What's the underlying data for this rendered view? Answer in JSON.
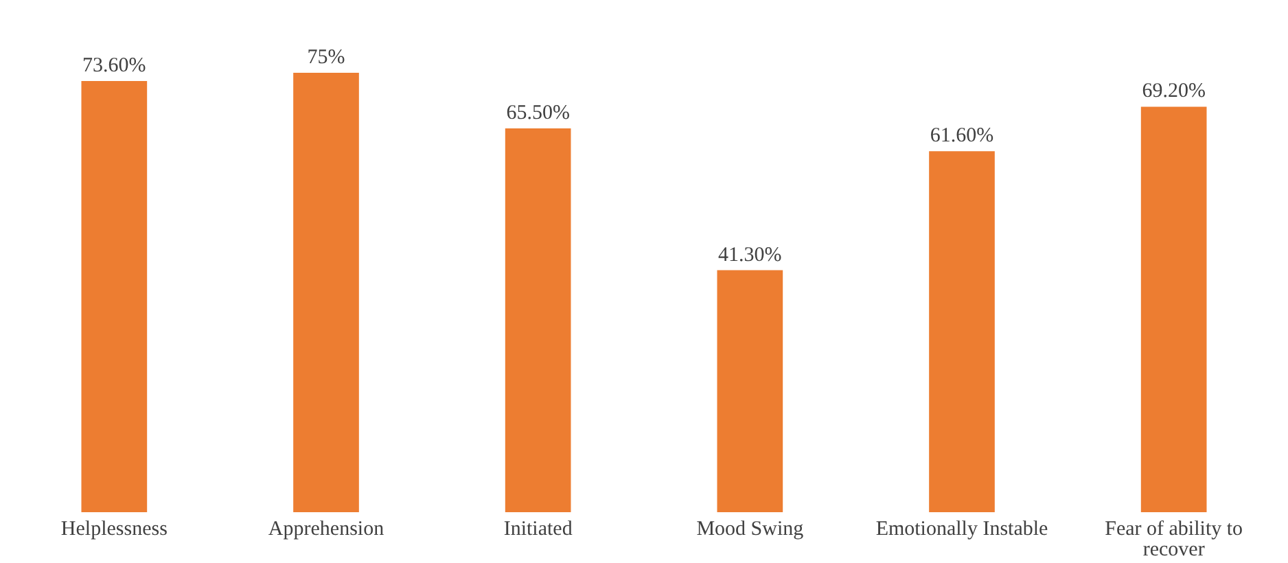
{
  "chart_data": {
    "type": "bar",
    "categories": [
      "Helplessness",
      "Apprehension",
      "Initiated",
      "Mood Swing",
      "Emotionally  Instable",
      "Fear of ability to recover"
    ],
    "values": [
      73.6,
      75,
      65.5,
      41.3,
      61.6,
      69.2
    ],
    "value_labels": [
      "73.60%",
      "75%",
      "65.50%",
      "41.30%",
      "61.60%",
      "69.20%"
    ],
    "color": "#ed7d31",
    "tick_labels": "x"
  }
}
